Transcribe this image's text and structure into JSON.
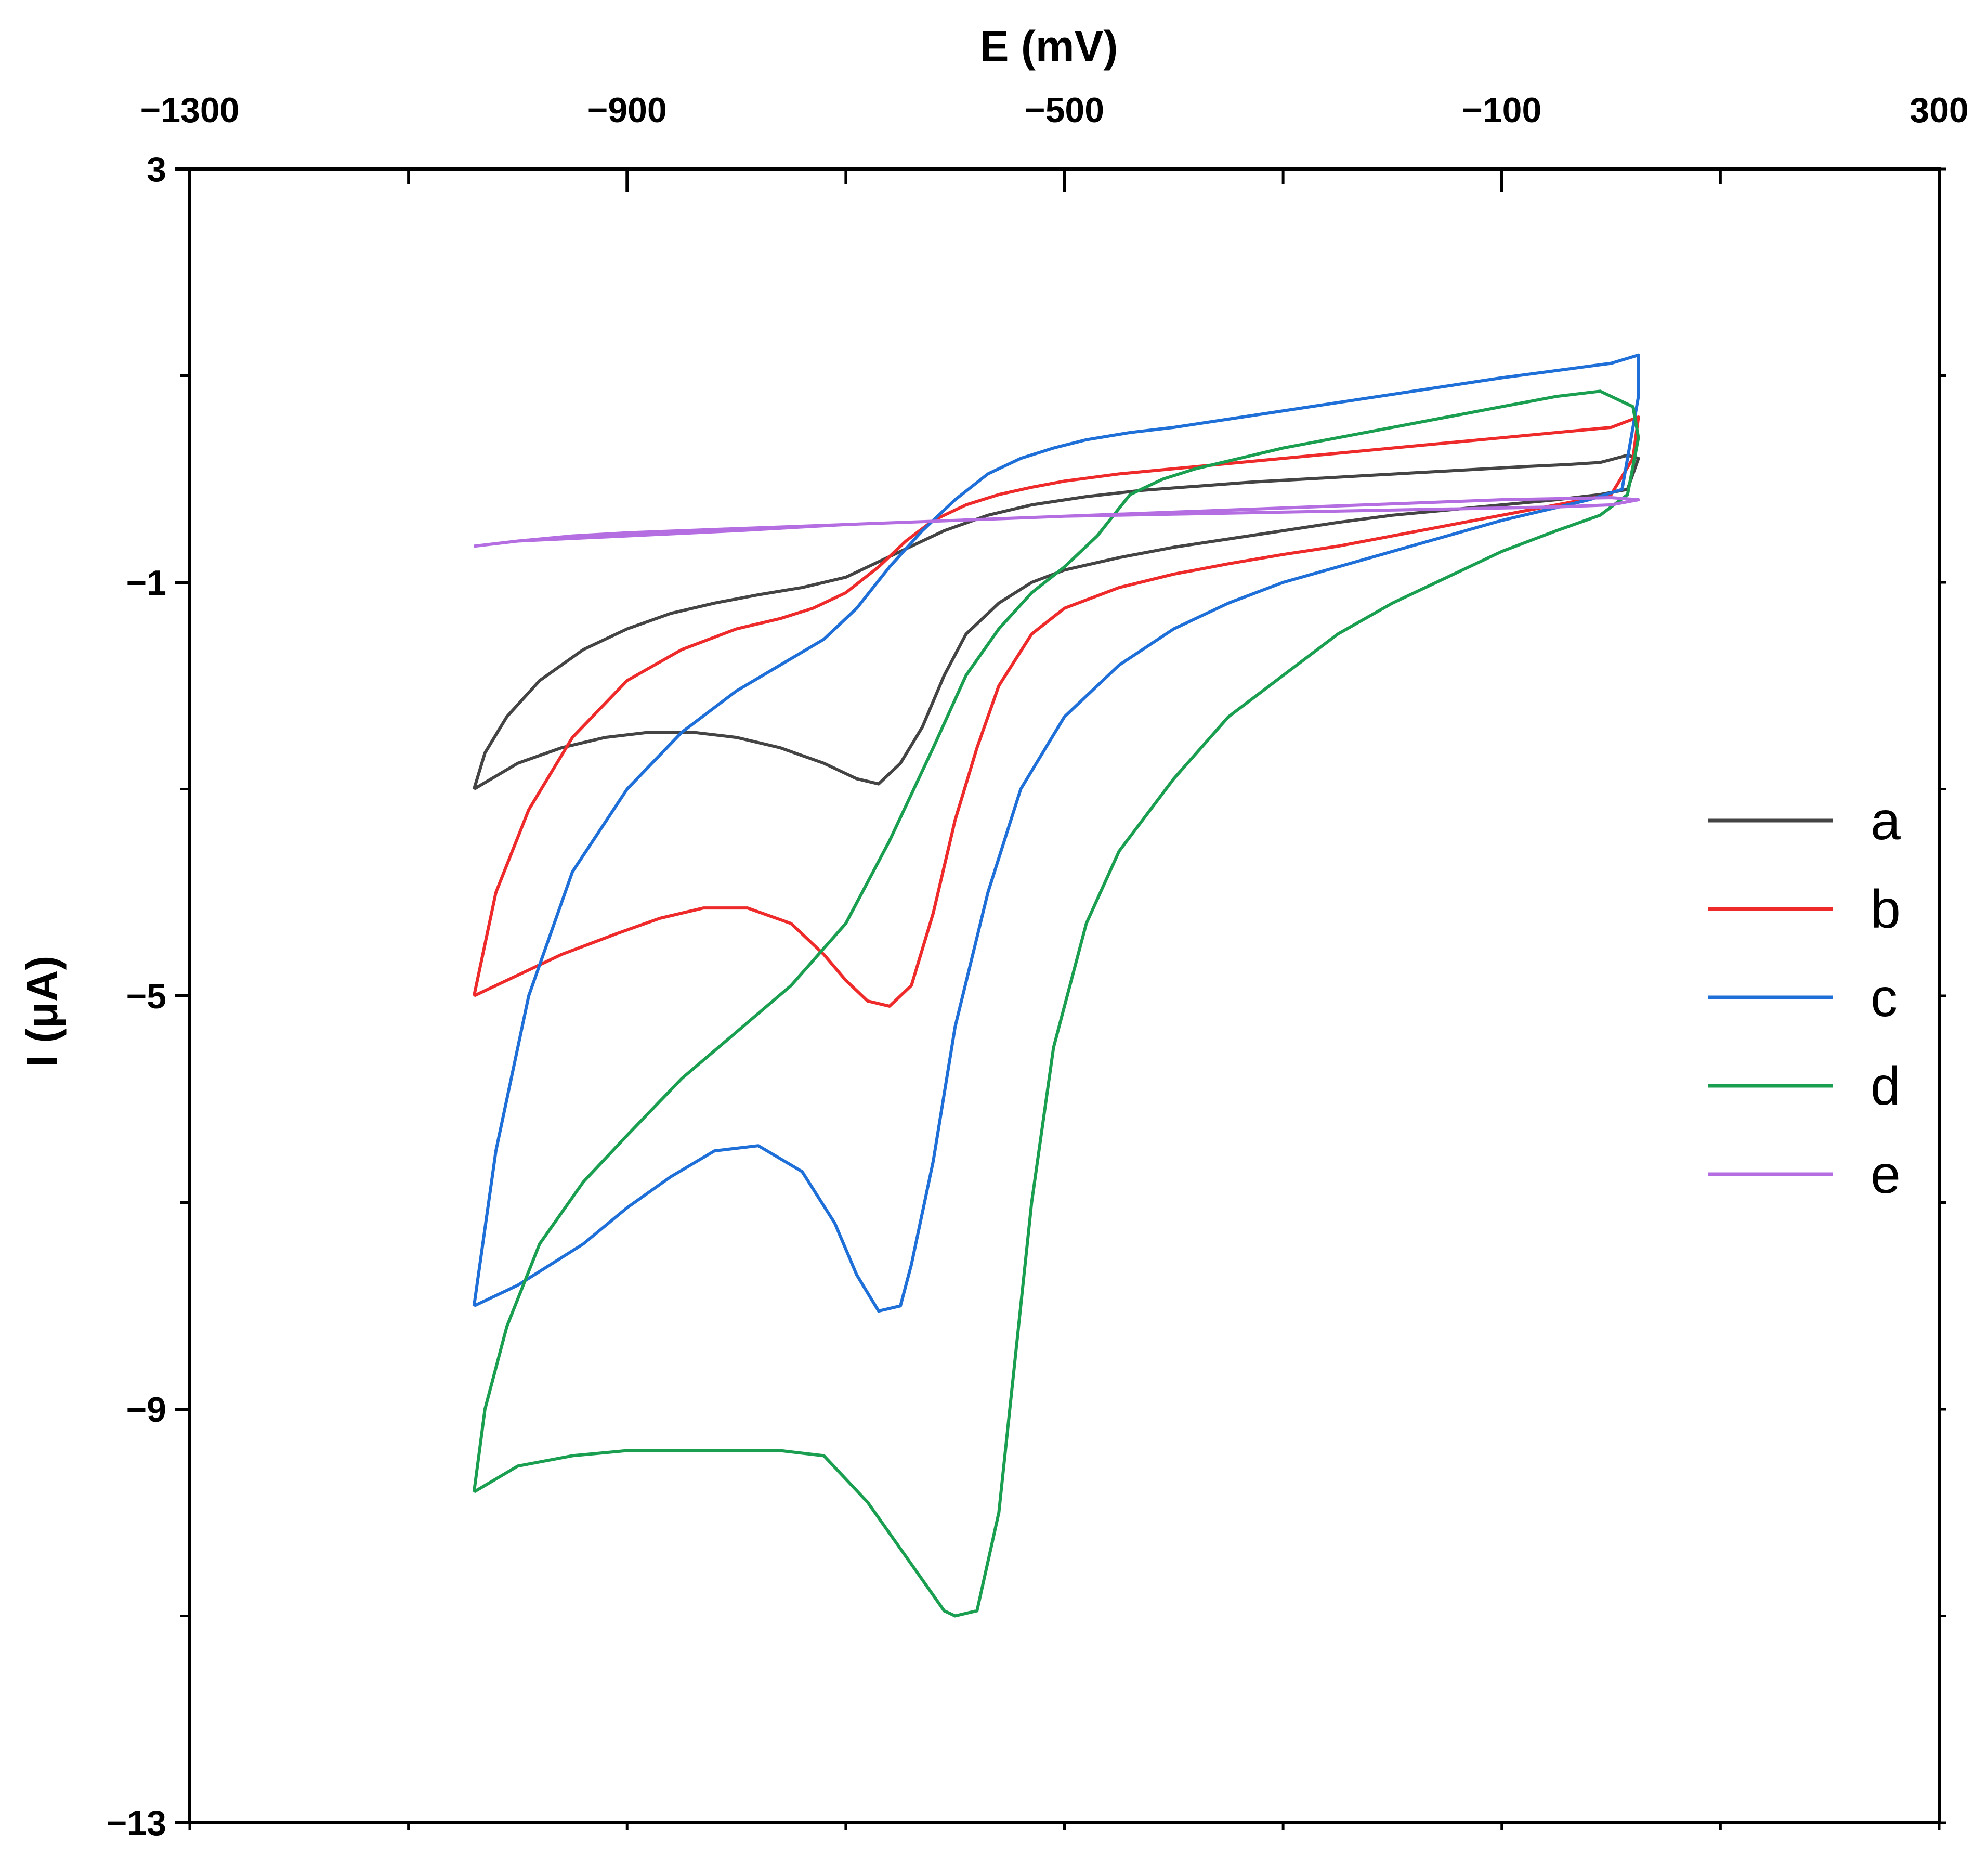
{
  "chart_data": {
    "type": "line",
    "title": "",
    "xlabel": "E (mV)",
    "ylabel": "I (μA)",
    "xlim": [
      -1300,
      300
    ],
    "ylim": [
      -13,
      3
    ],
    "x_ticks": [
      -1300,
      -900,
      -500,
      -100,
      300
    ],
    "x_tick_labels": [
      "−1300",
      "−900",
      "−500",
      "−100",
      "300"
    ],
    "x_minor_ticks": [
      -1100,
      -700,
      -300,
      100
    ],
    "y_ticks": [
      3,
      -1,
      -5,
      -9,
      -13
    ],
    "y_tick_labels": [
      "3",
      "−1",
      "−5",
      "−9",
      "−13"
    ],
    "y_minor_ticks": [
      1,
      -3,
      -7,
      -11
    ],
    "x_axis_position": "top",
    "grid": false,
    "legend_position": "right",
    "series": [
      {
        "name": "a",
        "color": "#444444",
        "x": [
          -1040,
          -1030,
          -1010,
          -980,
          -940,
          -900,
          -860,
          -820,
          -780,
          -740,
          -700,
          -670,
          -640,
          -610,
          -570,
          -530,
          -480,
          -430,
          -380,
          -330,
          -280,
          -230,
          -180,
          -130,
          -80,
          -40,
          -10,
          15,
          25,
          15,
          -10,
          -50,
          -100,
          -150,
          -200,
          -250,
          -300,
          -350,
          -400,
          -450,
          -500,
          -530,
          -560,
          -590,
          -610,
          -630,
          -650,
          -670,
          -690,
          -700,
          -720,
          -760,
          -800,
          -840,
          -880,
          -920,
          -960,
          -1000,
          -1040
        ],
        "y": [
          -3.0,
          -2.65,
          -2.3,
          -1.95,
          -1.65,
          -1.45,
          -1.3,
          -1.2,
          -1.12,
          -1.05,
          -0.95,
          -0.8,
          -0.65,
          -0.5,
          -0.35,
          -0.25,
          -0.17,
          -0.11,
          -0.07,
          -0.03,
          0.0,
          0.03,
          0.06,
          0.09,
          0.12,
          0.14,
          0.16,
          0.23,
          0.2,
          -0.1,
          -0.15,
          -0.2,
          -0.25,
          -0.3,
          -0.35,
          -0.42,
          -0.5,
          -0.58,
          -0.66,
          -0.76,
          -0.88,
          -1.0,
          -1.2,
          -1.5,
          -1.9,
          -2.4,
          -2.75,
          -2.95,
          -2.9,
          -2.85,
          -2.75,
          -2.6,
          -2.5,
          -2.45,
          -2.45,
          -2.5,
          -2.6,
          -2.75,
          -3.0
        ]
      },
      {
        "name": "b",
        "color": "#ee2a2a",
        "x": [
          -1040,
          -1020,
          -990,
          -950,
          -900,
          -850,
          -800,
          -760,
          -730,
          -700,
          -670,
          -645,
          -620,
          -590,
          -560,
          -530,
          -500,
          -450,
          -400,
          -350,
          -300,
          -250,
          -200,
          -150,
          -100,
          -50,
          0,
          25,
          20,
          0,
          -50,
          -100,
          -150,
          -200,
          -250,
          -300,
          -350,
          -400,
          -450,
          -500,
          -530,
          -560,
          -580,
          -600,
          -620,
          -640,
          -660,
          -680,
          -700,
          -720,
          -750,
          -790,
          -830,
          -870,
          -910,
          -960,
          -1000,
          -1040
        ],
        "y": [
          -5.0,
          -4.0,
          -3.2,
          -2.5,
          -1.95,
          -1.65,
          -1.45,
          -1.35,
          -1.25,
          -1.1,
          -0.85,
          -0.6,
          -0.4,
          -0.25,
          -0.15,
          -0.08,
          -0.02,
          0.05,
          0.1,
          0.15,
          0.2,
          0.25,
          0.3,
          0.35,
          0.4,
          0.45,
          0.5,
          0.6,
          0.2,
          -0.15,
          -0.25,
          -0.35,
          -0.45,
          -0.55,
          -0.65,
          -0.73,
          -0.82,
          -0.92,
          -1.05,
          -1.25,
          -1.5,
          -2.0,
          -2.6,
          -3.3,
          -4.2,
          -4.9,
          -5.1,
          -5.05,
          -4.85,
          -4.6,
          -4.3,
          -4.15,
          -4.15,
          -4.25,
          -4.4,
          -4.6,
          -4.8,
          -5.0
        ]
      },
      {
        "name": "c",
        "color": "#1f6fd8",
        "x": [
          -1040,
          -1020,
          -990,
          -950,
          -900,
          -850,
          -800,
          -760,
          -720,
          -690,
          -660,
          -630,
          -600,
          -570,
          -540,
          -510,
          -480,
          -440,
          -400,
          -350,
          -300,
          -250,
          -200,
          -150,
          -100,
          -50,
          0,
          25,
          25,
          10,
          -20,
          -60,
          -100,
          -150,
          -200,
          -250,
          -300,
          -350,
          -400,
          -450,
          -500,
          -540,
          -570,
          -600,
          -620,
          -640,
          -650,
          -670,
          -690,
          -710,
          -740,
          -780,
          -820,
          -860,
          -900,
          -940,
          -970,
          -1000,
          -1040
        ],
        "y": [
          -8.0,
          -6.5,
          -5.0,
          -3.8,
          -3.0,
          -2.45,
          -2.05,
          -1.8,
          -1.55,
          -1.25,
          -0.85,
          -0.5,
          -0.2,
          0.05,
          0.2,
          0.3,
          0.38,
          0.45,
          0.5,
          0.58,
          0.66,
          0.74,
          0.82,
          0.9,
          0.98,
          1.05,
          1.12,
          1.2,
          0.8,
          -0.1,
          -0.2,
          -0.3,
          -0.4,
          -0.55,
          -0.7,
          -0.85,
          -1.0,
          -1.2,
          -1.45,
          -1.8,
          -2.3,
          -3.0,
          -4.0,
          -5.3,
          -6.6,
          -7.6,
          -8.0,
          -8.05,
          -7.7,
          -7.2,
          -6.7,
          -6.45,
          -6.5,
          -6.75,
          -7.05,
          -7.4,
          -7.6,
          -7.8,
          -8.0
        ]
      },
      {
        "name": "d",
        "color": "#1a9e50",
        "x": [
          -1040,
          -1030,
          -1010,
          -980,
          -940,
          -900,
          -850,
          -800,
          -750,
          -700,
          -660,
          -620,
          -590,
          -560,
          -530,
          -500,
          -470,
          -440,
          -410,
          -380,
          -340,
          -300,
          -250,
          -200,
          -150,
          -100,
          -50,
          -10,
          20,
          25,
          15,
          -10,
          -50,
          -100,
          -150,
          -200,
          -250,
          -300,
          -350,
          -400,
          -450,
          -480,
          -510,
          -530,
          -545,
          -560,
          -580,
          -600,
          -610,
          -640,
          -680,
          -720,
          -760,
          -800,
          -850,
          -900,
          -950,
          -1000,
          -1040
        ],
        "y": [
          -9.8,
          -9.0,
          -8.2,
          -7.4,
          -6.8,
          -6.35,
          -5.8,
          -5.35,
          -4.9,
          -4.3,
          -3.5,
          -2.6,
          -1.9,
          -1.45,
          -1.1,
          -0.85,
          -0.55,
          -0.15,
          0.0,
          0.1,
          0.2,
          0.3,
          0.4,
          0.5,
          0.6,
          0.7,
          0.8,
          0.85,
          0.7,
          0.4,
          -0.15,
          -0.35,
          -0.5,
          -0.7,
          -0.95,
          -1.2,
          -1.5,
          -1.9,
          -2.3,
          -2.9,
          -3.6,
          -4.3,
          -5.5,
          -7.0,
          -8.5,
          -10.0,
          -10.95,
          -11.0,
          -10.95,
          -10.5,
          -9.9,
          -9.45,
          -9.4,
          -9.4,
          -9.4,
          -9.4,
          -9.45,
          -9.55,
          -9.8
        ]
      },
      {
        "name": "e",
        "color": "#b46ee2",
        "x": [
          -1040,
          -1000,
          -950,
          -900,
          -850,
          -800,
          -750,
          -700,
          -650,
          -600,
          -550,
          -500,
          -450,
          -400,
          -350,
          -300,
          -250,
          -200,
          -150,
          -100,
          -50,
          0,
          25,
          0,
          -50,
          -100,
          -200,
          -300,
          -400,
          -500,
          -600,
          -700,
          -800,
          -900,
          -1000,
          -1040
        ],
        "y": [
          -0.65,
          -0.6,
          -0.55,
          -0.52,
          -0.5,
          -0.48,
          -0.46,
          -0.44,
          -0.42,
          -0.4,
          -0.38,
          -0.36,
          -0.34,
          -0.32,
          -0.3,
          -0.28,
          -0.26,
          -0.24,
          -0.22,
          -0.2,
          -0.19,
          -0.18,
          -0.2,
          -0.25,
          -0.27,
          -0.28,
          -0.3,
          -0.32,
          -0.34,
          -0.36,
          -0.4,
          -0.44,
          -0.5,
          -0.55,
          -0.6,
          -0.65
        ]
      }
    ]
  }
}
